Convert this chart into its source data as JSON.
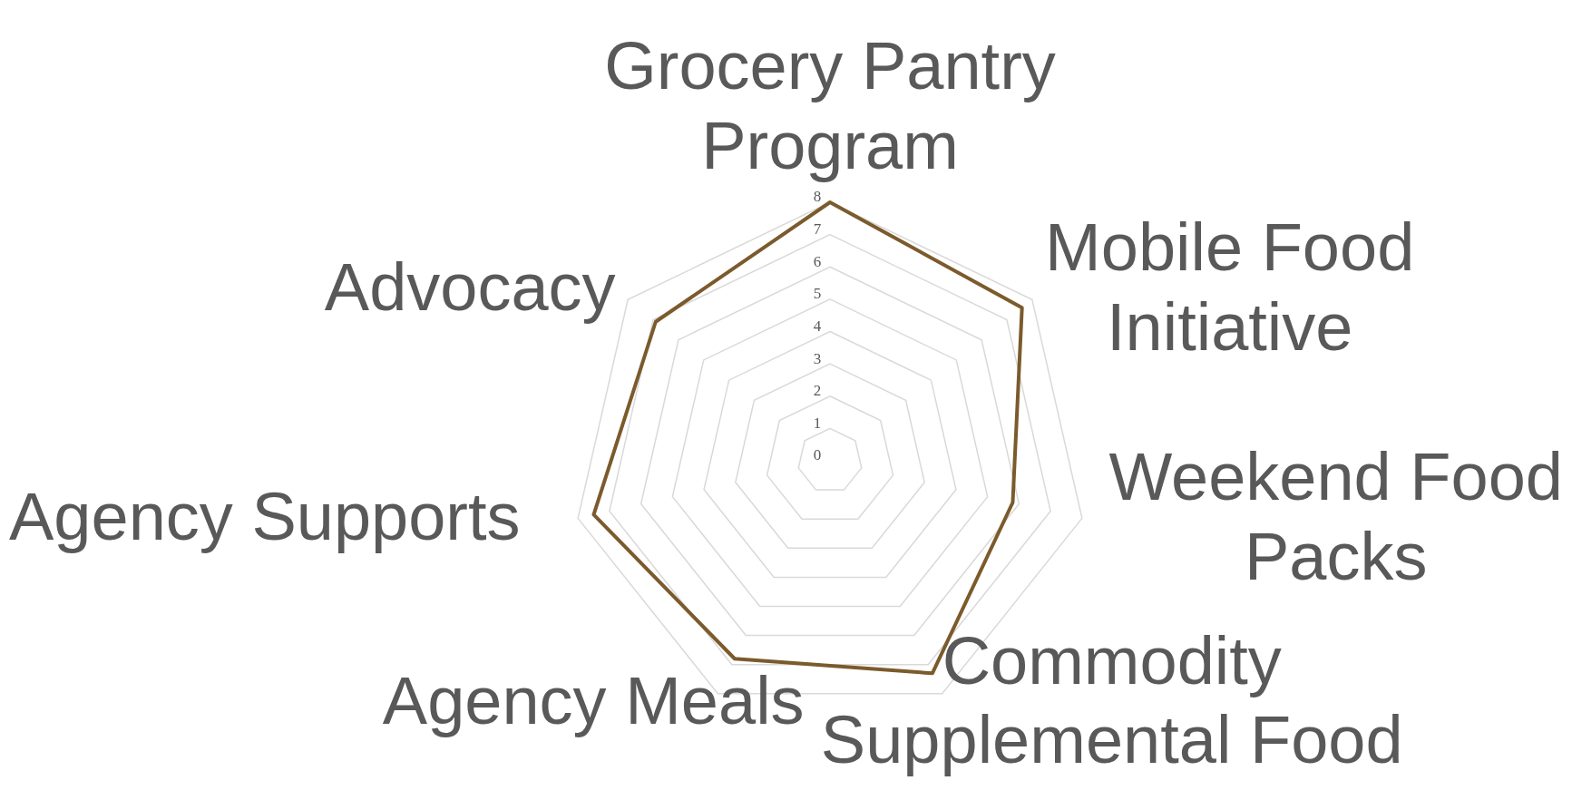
{
  "chart_data": {
    "type": "radar",
    "categories": [
      "Grocery Pantry Program",
      "Mobile Food Initiative",
      "Weekend Food Packs",
      "Commodity Supplemental Food",
      "Agency Meals",
      "Agency Supports",
      "Advocacy"
    ],
    "series": [
      {
        "color": "#7b5a2c",
        "values": [
          8,
          7.6,
          5.8,
          7.3,
          6.8,
          7.5,
          6.9
        ]
      }
    ],
    "ylim": [
      0,
      8
    ],
    "yticks": [
      0,
      1,
      2,
      3,
      4,
      5,
      6,
      7,
      8
    ],
    "grid": true,
    "legend": false
  }
}
